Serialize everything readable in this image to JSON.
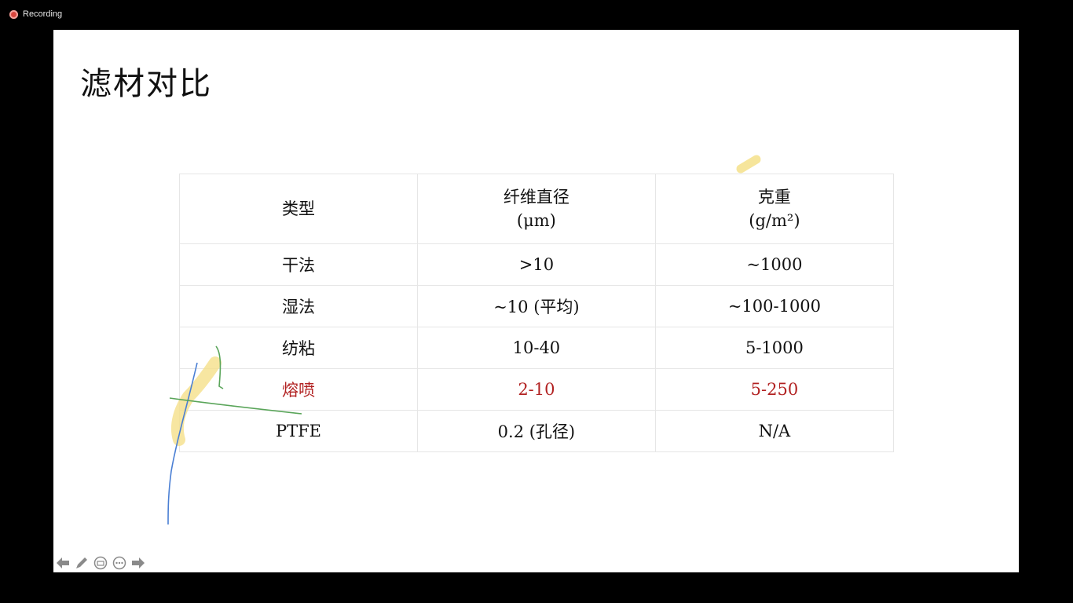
{
  "recording": {
    "label": "Recording",
    "indicator_color": "#d9463e"
  },
  "slide": {
    "title": "滤材对比",
    "highlight_color": "#b22222",
    "table": {
      "headers": [
        {
          "line1": "类型",
          "line2": ""
        },
        {
          "line1": "纤维直径",
          "line2": "(μm)"
        },
        {
          "line1": "克重",
          "line2": "(g/m²)"
        }
      ],
      "rows": [
        [
          "干法",
          ">10",
          "~1000"
        ],
        [
          "湿法",
          "~10 (平均)",
          "~100-1000"
        ],
        [
          "纺粘",
          "10-40",
          "5-1000"
        ],
        [
          "熔喷",
          "2-10",
          "5-250"
        ],
        [
          "PTFE",
          "0.2 (孔径)",
          "N/A"
        ]
      ],
      "highlighted_row": 3
    }
  },
  "ink_annotations": {
    "colors": [
      "#f5e08a",
      "#4a7fd4",
      "#5aa55a"
    ]
  },
  "toolbar": {
    "icons": [
      "arrow-left-icon",
      "pen-icon",
      "subtitle-icon",
      "more-icon",
      "arrow-right-icon"
    ]
  }
}
